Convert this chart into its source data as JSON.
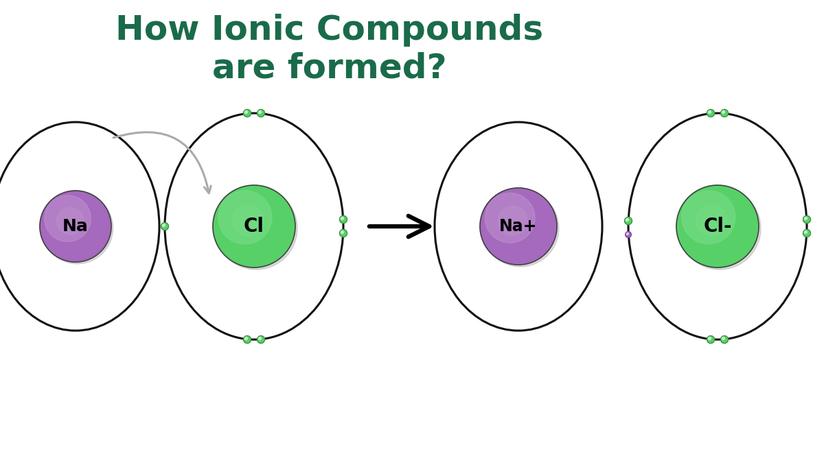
{
  "title_line1": "How Ionic Compounds",
  "title_line2": "are formed?",
  "title_color": "#1a6b4a",
  "title_fontsize": 36,
  "bg_color": "#ffffff",
  "na_color": "#a569bd",
  "na_color_light": "#c39bd3",
  "cl_color": "#58d068",
  "cl_color_light": "#82e091",
  "electron_color": "#58d068",
  "electron_edge": "#3a8a3a",
  "na_label": "Na",
  "cl_label": "Cl",
  "na_plus_label": "Na+",
  "cl_minus_label": "Cl-",
  "orbit_color": "#111111",
  "orbit_lw": 2.2,
  "gray_arrow_color": "#aaaaaa",
  "electron_r": 0.055
}
